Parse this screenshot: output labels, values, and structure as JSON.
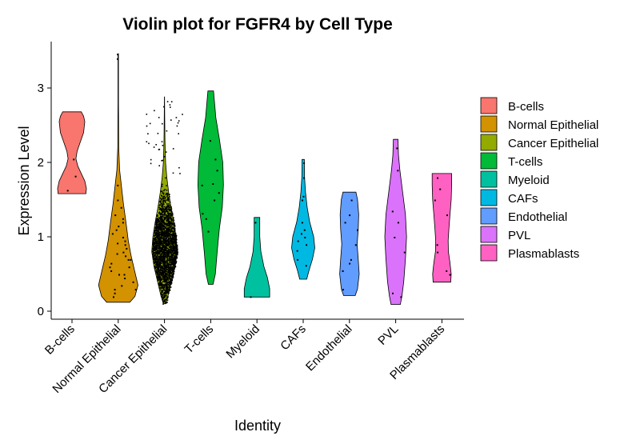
{
  "chart_data": {
    "type": "violin",
    "title": "Violin plot for FGFR4 by Cell Type",
    "xlabel": "Identity",
    "ylabel": "Expression Level",
    "ylim": [
      -0.1,
      3.6
    ],
    "yticks": [
      0,
      1,
      2,
      3
    ],
    "grid": false,
    "legend_position": "right",
    "categories": [
      "B-cells",
      "Normal Epithelial",
      "Cancer Epithelial",
      "T-cells",
      "Myeloid",
      "CAFs",
      "Endothelial",
      "PVL",
      "Plasmablasts"
    ],
    "colors": [
      "#F8766D",
      "#D39200",
      "#93AA00",
      "#00BA38",
      "#00C19F",
      "#00B9E3",
      "#619CFF",
      "#DB72FB",
      "#FF61C3"
    ],
    "series": [
      {
        "name": "B-cells",
        "min": 1.58,
        "max": 2.68,
        "density": [
          [
            1.58,
            0.6
          ],
          [
            1.65,
            0.62
          ],
          [
            1.75,
            0.55
          ],
          [
            1.85,
            0.4
          ],
          [
            1.95,
            0.25
          ],
          [
            2.05,
            0.17
          ],
          [
            2.15,
            0.22
          ],
          [
            2.25,
            0.33
          ],
          [
            2.4,
            0.5
          ],
          [
            2.55,
            0.55
          ],
          [
            2.62,
            0.5
          ],
          [
            2.68,
            0.4
          ]
        ],
        "points": [
          1.82,
          1.63,
          2.05
        ]
      },
      {
        "name": "Normal Epithelial",
        "min": 0.12,
        "max": 3.46,
        "density": [
          [
            0.12,
            0.5
          ],
          [
            0.2,
            0.72
          ],
          [
            0.35,
            0.85
          ],
          [
            0.55,
            0.7
          ],
          [
            0.75,
            0.55
          ],
          [
            0.95,
            0.43
          ],
          [
            1.2,
            0.33
          ],
          [
            1.45,
            0.22
          ],
          [
            1.7,
            0.13
          ],
          [
            1.9,
            0.06
          ],
          [
            2.2,
            0.02
          ],
          [
            2.8,
            0.01
          ],
          [
            3.4,
            0.01
          ],
          [
            3.46,
            0.01
          ]
        ],
        "points": [
          0.3,
          0.45,
          0.5,
          0.6,
          0.7,
          0.8,
          0.9,
          1.0,
          1.1,
          1.2,
          1.3,
          0.35,
          0.55,
          0.65,
          0.75,
          0.85,
          0.95,
          1.05,
          1.15,
          1.4,
          1.5,
          1.7,
          0.25,
          0.4,
          0.6,
          0.78,
          0.92,
          1.25,
          3.46,
          3.4,
          0.2,
          0.3,
          0.5,
          0.7
        ]
      },
      {
        "name": "Cancer Epithelial",
        "min": 0.1,
        "max": 2.88,
        "density": [
          [
            0.1,
            0.05
          ],
          [
            0.2,
            0.15
          ],
          [
            0.4,
            0.3
          ],
          [
            0.6,
            0.45
          ],
          [
            0.8,
            0.55
          ],
          [
            1.0,
            0.5
          ],
          [
            1.2,
            0.4
          ],
          [
            1.4,
            0.28
          ],
          [
            1.6,
            0.18
          ],
          [
            1.8,
            0.1
          ],
          [
            2.0,
            0.05
          ],
          [
            2.3,
            0.02
          ],
          [
            2.6,
            0.01
          ],
          [
            2.88,
            0.005
          ]
        ],
        "points": []
      },
      {
        "name": "T-cells",
        "min": 0.36,
        "max": 2.96,
        "density": [
          [
            0.36,
            0.1
          ],
          [
            0.5,
            0.2
          ],
          [
            0.8,
            0.28
          ],
          [
            1.1,
            0.37
          ],
          [
            1.4,
            0.5
          ],
          [
            1.7,
            0.55
          ],
          [
            2.0,
            0.52
          ],
          [
            2.3,
            0.38
          ],
          [
            2.6,
            0.22
          ],
          [
            2.85,
            0.15
          ],
          [
            2.96,
            0.12
          ]
        ],
        "points": [
          1.08,
          1.32,
          1.6,
          1.7,
          1.72,
          1.9,
          2.05,
          1.5,
          1.25,
          2.3
        ]
      },
      {
        "name": "Myeloid",
        "min": 0.19,
        "max": 1.26,
        "density": [
          [
            0.19,
            0.55
          ],
          [
            0.3,
            0.55
          ],
          [
            0.45,
            0.45
          ],
          [
            0.6,
            0.3
          ],
          [
            0.8,
            0.17
          ],
          [
            1.0,
            0.12
          ],
          [
            1.2,
            0.12
          ],
          [
            1.26,
            0.12
          ]
        ],
        "points": [
          0.2,
          1.2
        ]
      },
      {
        "name": "CAFs",
        "min": 0.43,
        "max": 2.04,
        "density": [
          [
            0.43,
            0.15
          ],
          [
            0.55,
            0.25
          ],
          [
            0.7,
            0.4
          ],
          [
            0.85,
            0.5
          ],
          [
            1.0,
            0.45
          ],
          [
            1.2,
            0.28
          ],
          [
            1.4,
            0.17
          ],
          [
            1.6,
            0.1
          ],
          [
            1.8,
            0.06
          ],
          [
            2.04,
            0.05
          ]
        ],
        "points": [
          0.62,
          0.82,
          0.9,
          0.95,
          1.0,
          1.05,
          1.1,
          1.2,
          1.5,
          1.55,
          1.8,
          2.0,
          0.7
        ]
      },
      {
        "name": "Endothelial",
        "min": 0.21,
        "max": 1.6,
        "density": [
          [
            0.21,
            0.25
          ],
          [
            0.3,
            0.35
          ],
          [
            0.5,
            0.42
          ],
          [
            0.7,
            0.38
          ],
          [
            0.9,
            0.33
          ],
          [
            1.1,
            0.38
          ],
          [
            1.3,
            0.4
          ],
          [
            1.5,
            0.35
          ],
          [
            1.6,
            0.28
          ]
        ],
        "points": [
          0.3,
          0.55,
          0.65,
          0.7,
          0.9,
          1.1,
          1.2,
          1.3,
          1.5
        ]
      },
      {
        "name": "PVL",
        "min": 0.09,
        "max": 2.31,
        "density": [
          [
            0.09,
            0.2
          ],
          [
            0.2,
            0.27
          ],
          [
            0.4,
            0.35
          ],
          [
            0.7,
            0.42
          ],
          [
            1.0,
            0.47
          ],
          [
            1.3,
            0.42
          ],
          [
            1.6,
            0.3
          ],
          [
            1.9,
            0.18
          ],
          [
            2.1,
            0.12
          ],
          [
            2.31,
            0.1
          ]
        ],
        "points": [
          0.25,
          0.8,
          1.0,
          1.2,
          1.35,
          2.2,
          1.9,
          0.2
        ]
      },
      {
        "name": "Plasmablasts",
        "min": 0.39,
        "max": 1.85,
        "density": [
          [
            0.39,
            0.38
          ],
          [
            0.5,
            0.4
          ],
          [
            0.65,
            0.35
          ],
          [
            0.8,
            0.28
          ],
          [
            0.95,
            0.27
          ],
          [
            1.1,
            0.3
          ],
          [
            1.3,
            0.35
          ],
          [
            1.5,
            0.4
          ],
          [
            1.7,
            0.42
          ],
          [
            1.85,
            0.42
          ]
        ],
        "points": [
          0.5,
          0.55,
          0.8,
          0.9,
          1.3,
          1.5,
          1.65,
          1.8
        ]
      }
    ]
  }
}
